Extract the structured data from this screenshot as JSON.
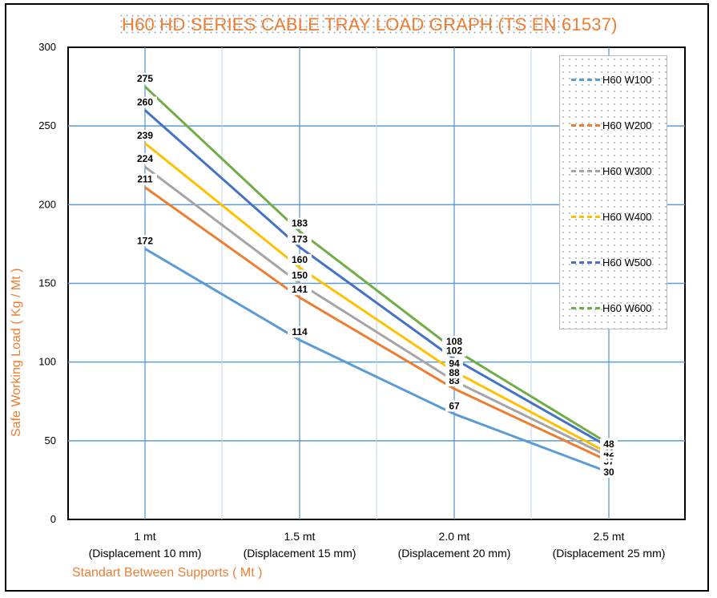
{
  "chart_data": {
    "type": "line",
    "title": "H60 HD SERIES CABLE TRAY LOAD GRAPH (TS EN 61537)",
    "ylabel": "Safe Working Load ( Kg / Mt )",
    "xlabel": "Standart Between Supports ( Mt )",
    "ylim": [
      0,
      300
    ],
    "yticks": [
      0,
      50,
      100,
      150,
      200,
      250,
      300
    ],
    "categories": [
      {
        "main": "1 mt",
        "sub": "(Displacement 10 mm)"
      },
      {
        "main": "1.5 mt",
        "sub": "(Displacement 15 mm)"
      },
      {
        "main": "2.0 mt",
        "sub": "(Displacement 20 mm)"
      },
      {
        "main": "2.5 mt",
        "sub": "(Displacement 25 mm)"
      }
    ],
    "series": [
      {
        "name": "H60 W100",
        "color": "#5B9BD5",
        "values": [
          172,
          114,
          67,
          30
        ]
      },
      {
        "name": "H60 W200",
        "color": "#ED7D31",
        "values": [
          211,
          141,
          83,
          37
        ]
      },
      {
        "name": "H60 W300",
        "color": "#A5A5A5",
        "values": [
          224,
          150,
          88,
          40
        ]
      },
      {
        "name": "H60 W400",
        "color": "#FFC000",
        "values": [
          239,
          160,
          94,
          42
        ]
      },
      {
        "name": "H60 W500",
        "color": "#4472C4",
        "values": [
          260,
          173,
          102,
          46
        ]
      },
      {
        "name": "H60 W600",
        "color": "#70AD47",
        "values": [
          275,
          183,
          108,
          48
        ]
      }
    ],
    "grid": true,
    "legend_position": "top-right"
  }
}
